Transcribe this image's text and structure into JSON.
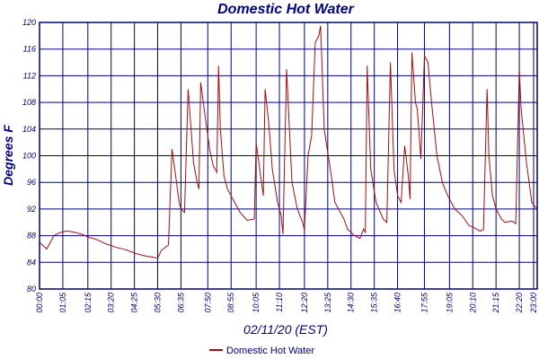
{
  "chart_data": {
    "type": "line",
    "title": "Domestic Hot Water",
    "xlabel": "02/11/20 (EST)",
    "ylabel": "Degrees F",
    "ylim": [
      80,
      120
    ],
    "xlim": [
      "00:00",
      "23:10"
    ],
    "grid": true,
    "legend_position": "bottom-center",
    "colors": {
      "series": "#a01010",
      "axes": "#000080"
    },
    "x_ticks": [
      "00:00",
      "01:05",
      "02:15",
      "03:20",
      "04:25",
      "05:30",
      "06:35",
      "07:50",
      "08:55",
      "10:05",
      "11:10",
      "12:20",
      "13:25",
      "14:30",
      "15:35",
      "16:40",
      "17:55",
      "19:05",
      "20:10",
      "21:15",
      "22:20",
      "23:00"
    ],
    "y_ticks": [
      80,
      84,
      88,
      92,
      96,
      100,
      104,
      108,
      112,
      116,
      120
    ],
    "series": [
      {
        "name": "Domestic Hot Water",
        "x": [
          "00:00",
          "00:10",
          "00:20",
          "00:30",
          "00:40",
          "00:50",
          "01:00",
          "01:15",
          "01:30",
          "01:45",
          "02:00",
          "02:15",
          "02:30",
          "02:45",
          "03:00",
          "03:15",
          "03:30",
          "03:45",
          "04:00",
          "04:15",
          "04:30",
          "04:45",
          "05:00",
          "05:15",
          "05:30",
          "05:40",
          "05:50",
          "06:00",
          "06:10",
          "06:20",
          "06:30",
          "06:35",
          "06:45",
          "06:55",
          "07:10",
          "07:20",
          "07:25",
          "07:30",
          "07:40",
          "07:50",
          "07:55",
          "08:05",
          "08:15",
          "08:20",
          "08:25",
          "08:35",
          "08:45",
          "09:00",
          "09:20",
          "09:40",
          "10:00",
          "10:05",
          "10:15",
          "10:25",
          "10:30",
          "10:40",
          "10:50",
          "11:05",
          "11:15",
          "11:20",
          "11:30",
          "11:45",
          "12:00",
          "12:15",
          "12:20",
          "12:30",
          "12:40",
          "12:50",
          "13:00",
          "13:05",
          "13:15",
          "13:25",
          "13:35",
          "13:45",
          "14:00",
          "14:10",
          "14:20",
          "14:40",
          "14:55",
          "15:05",
          "15:10",
          "15:15",
          "15:25",
          "15:40",
          "16:00",
          "16:10",
          "16:20",
          "16:30",
          "16:40",
          "16:50",
          "17:00",
          "17:10",
          "17:15",
          "17:20",
          "17:30",
          "17:35",
          "17:45",
          "17:55",
          "18:00",
          "18:05",
          "18:15",
          "18:30",
          "18:45",
          "19:00",
          "19:20",
          "19:40",
          "20:00",
          "20:10",
          "20:30",
          "20:40",
          "20:50",
          "20:55",
          "21:05",
          "21:15",
          "21:30",
          "21:40",
          "22:00",
          "22:10",
          "22:20",
          "22:25",
          "22:40",
          "22:55",
          "23:10"
        ],
        "y": [
          87.0,
          86.5,
          86.0,
          87.0,
          88.0,
          88.3,
          88.5,
          88.7,
          88.6,
          88.4,
          88.2,
          87.8,
          87.6,
          87.3,
          86.9,
          86.6,
          86.3,
          86.1,
          85.9,
          85.6,
          85.3,
          85.1,
          84.9,
          84.8,
          84.6,
          85.8,
          86.2,
          86.6,
          101.0,
          97.0,
          93.0,
          92.0,
          91.5,
          110.0,
          99.0,
          96.0,
          95.0,
          111.0,
          107.0,
          103.0,
          101.0,
          98.5,
          97.5,
          113.5,
          104.0,
          97.0,
          95.0,
          93.5,
          91.5,
          90.3,
          90.5,
          102.0,
          98.0,
          94.0,
          110.0,
          105.0,
          98.0,
          93.0,
          91.0,
          88.2,
          113.0,
          96.0,
          92.0,
          90.0,
          88.8,
          100.0,
          103.0,
          117.0,
          118.0,
          119.5,
          104.0,
          100.5,
          97.0,
          93.0,
          91.5,
          90.5,
          89.0,
          88.0,
          87.6,
          89.0,
          88.5,
          113.5,
          98.0,
          93.0,
          90.5,
          90.0,
          114.0,
          98.0,
          94.0,
          93.0,
          101.5,
          97.0,
          93.5,
          115.5,
          108.0,
          107.0,
          99.5,
          115.0,
          114.5,
          114.0,
          108.0,
          100.0,
          96.0,
          94.0,
          92.0,
          91.0,
          89.5,
          89.3,
          88.7,
          88.9,
          110.0,
          100.0,
          94.0,
          92.0,
          90.5,
          90.0,
          90.2,
          89.8,
          113.0,
          107.0,
          99.0,
          93.0,
          92.0
        ]
      }
    ]
  }
}
